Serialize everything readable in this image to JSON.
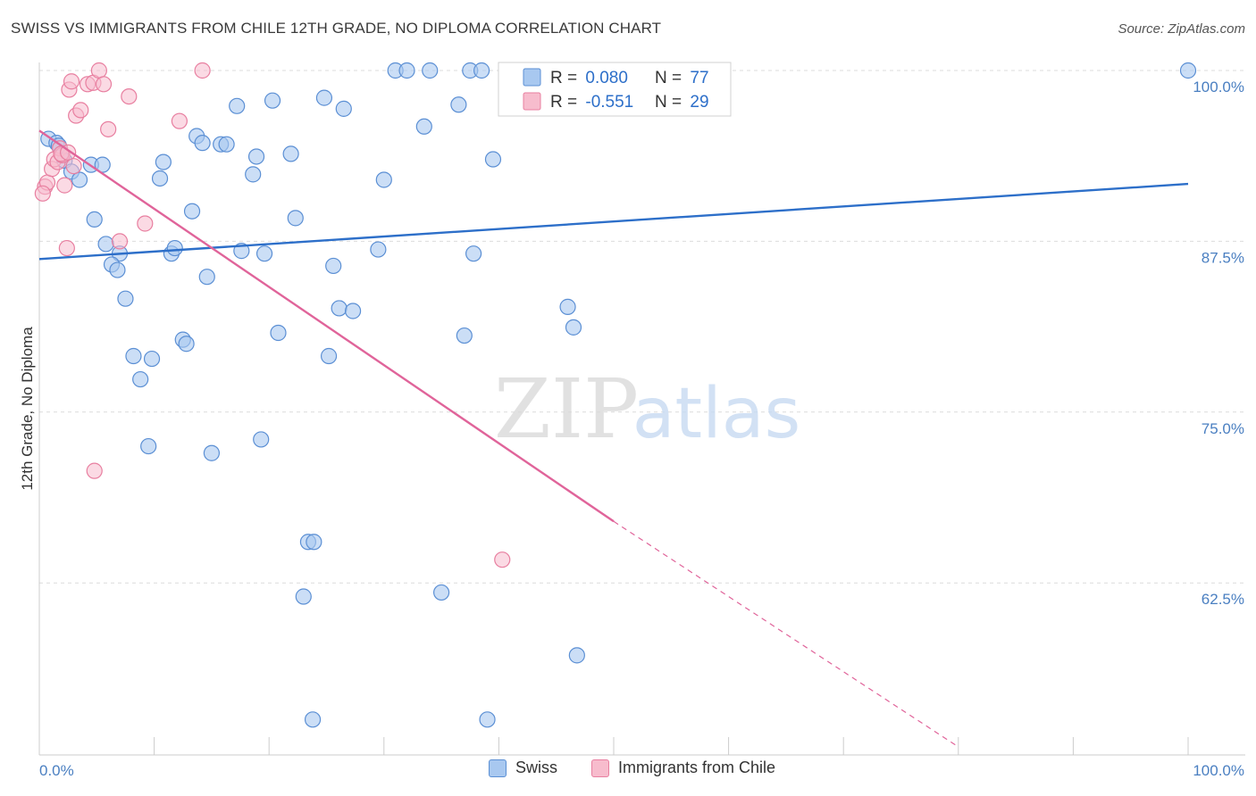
{
  "header": {
    "title": "SWISS VS IMMIGRANTS FROM CHILE 12TH GRADE, NO DIPLOMA CORRELATION CHART",
    "source": "Source: ZipAtlas.com"
  },
  "watermark": {
    "zip": "ZIP",
    "atlas": "atlas"
  },
  "legend": {
    "swiss": {
      "r_label": "R = ",
      "r_value": "0.080",
      "n_label": "N = ",
      "n_value": "77"
    },
    "chile": {
      "r_label": "R = ",
      "r_value": "-0.551",
      "n_label": "N = ",
      "n_value": "29"
    }
  },
  "bottom_legend": {
    "swiss": "Swiss",
    "chile": "Immigrants from Chile"
  },
  "colors": {
    "swiss_fill": "#a8c8f0",
    "swiss_stroke": "#5b8fd4",
    "swiss_line": "#2d6fc9",
    "chile_fill": "#f7bccd",
    "chile_stroke": "#e87fa0",
    "chile_line": "#e0649a",
    "axis_label": "#4a7fc1",
    "grid": "#dcdcdc"
  },
  "chart_data": {
    "type": "scatter",
    "title": "SWISS VS IMMIGRANTS FROM CHILE 12TH GRADE, NO DIPLOMA CORRELATION CHART",
    "xlabel": "",
    "ylabel": "12th Grade, No Diploma",
    "xlim": [
      0,
      100
    ],
    "ylim": [
      50.5,
      101
    ],
    "x_tick_labels": [
      "0.0%",
      "100.0%"
    ],
    "y_ticks": [
      62.5,
      75.0,
      87.5,
      100.0
    ],
    "y_tick_labels": [
      "62.5%",
      "75.0%",
      "87.5%",
      "100.0%"
    ],
    "grid": true,
    "legend_position": "top-center",
    "series": [
      {
        "name": "Swiss",
        "r": 0.08,
        "n": 77,
        "trend": {
          "x": [
            0,
            100
          ],
          "y": [
            86.2,
            91.7
          ]
        },
        "points": [
          [
            0.8,
            95.0
          ],
          [
            1.5,
            94.7
          ],
          [
            1.7,
            94.5
          ],
          [
            2.2,
            93.4
          ],
          [
            2.8,
            92.6
          ],
          [
            3.5,
            92.0
          ],
          [
            4.5,
            93.1
          ],
          [
            5.5,
            93.1
          ],
          [
            4.8,
            89.1
          ],
          [
            5.8,
            87.3
          ],
          [
            7.0,
            86.6
          ],
          [
            6.3,
            85.8
          ],
          [
            6.8,
            85.4
          ],
          [
            7.5,
            83.3
          ],
          [
            8.2,
            79.1
          ],
          [
            9.8,
            78.9
          ],
          [
            8.8,
            77.4
          ],
          [
            9.5,
            72.5
          ],
          [
            10.5,
            92.1
          ],
          [
            10.8,
            93.3
          ],
          [
            11.5,
            86.6
          ],
          [
            11.8,
            87.0
          ],
          [
            12.5,
            80.3
          ],
          [
            12.8,
            80.0
          ],
          [
            13.3,
            89.7
          ],
          [
            13.7,
            95.2
          ],
          [
            14.2,
            94.7
          ],
          [
            14.6,
            84.9
          ],
          [
            15.0,
            72.0
          ],
          [
            15.8,
            94.6
          ],
          [
            16.3,
            94.6
          ],
          [
            17.2,
            97.4
          ],
          [
            17.6,
            86.8
          ],
          [
            18.6,
            92.4
          ],
          [
            18.9,
            93.7
          ],
          [
            19.3,
            73.0
          ],
          [
            19.6,
            86.6
          ],
          [
            20.3,
            97.8
          ],
          [
            20.8,
            80.8
          ],
          [
            21.9,
            93.9
          ],
          [
            22.3,
            89.2
          ],
          [
            23.0,
            61.5
          ],
          [
            23.4,
            65.5
          ],
          [
            23.9,
            65.5
          ],
          [
            24.8,
            98.0
          ],
          [
            25.2,
            79.1
          ],
          [
            25.6,
            85.7
          ],
          [
            26.1,
            82.6
          ],
          [
            26.5,
            97.2
          ],
          [
            27.3,
            82.4
          ],
          [
            23.8,
            52.5
          ],
          [
            29.5,
            86.9
          ],
          [
            30.0,
            92.0
          ],
          [
            31.0,
            100.0
          ],
          [
            32.0,
            100.0
          ],
          [
            33.5,
            95.9
          ],
          [
            34.0,
            100.0
          ],
          [
            35.0,
            61.8
          ],
          [
            36.5,
            97.5
          ],
          [
            37.5,
            100.0
          ],
          [
            38.5,
            100.0
          ],
          [
            37.0,
            80.6
          ],
          [
            37.8,
            86.6
          ],
          [
            39.0,
            52.5
          ],
          [
            39.5,
            93.5
          ],
          [
            41.5,
            100.0
          ],
          [
            43.0,
            100.0
          ],
          [
            45.0,
            100.0
          ],
          [
            46.5,
            100.0
          ],
          [
            46.0,
            82.7
          ],
          [
            46.5,
            81.2
          ],
          [
            46.8,
            57.2
          ],
          [
            49.0,
            100.0
          ],
          [
            51.0,
            100.0
          ],
          [
            53.0,
            100.0
          ],
          [
            55.0,
            100.0
          ],
          [
            100.0,
            100.0
          ]
        ]
      },
      {
        "name": "Immigrants from Chile",
        "r": -0.551,
        "n": 29,
        "trend": {
          "x": [
            0,
            50
          ],
          "y": [
            95.6,
            67.0
          ]
        },
        "trend_dashed": {
          "x": [
            50,
            80
          ],
          "y": [
            67.0,
            50.5
          ]
        },
        "points": [
          [
            0.5,
            91.5
          ],
          [
            0.7,
            91.8
          ],
          [
            1.1,
            92.8
          ],
          [
            1.3,
            93.5
          ],
          [
            1.6,
            93.3
          ],
          [
            1.8,
            94.3
          ],
          [
            2.0,
            93.8
          ],
          [
            2.2,
            91.6
          ],
          [
            2.4,
            87.0
          ],
          [
            2.6,
            98.6
          ],
          [
            2.8,
            99.2
          ],
          [
            3.2,
            96.7
          ],
          [
            3.6,
            97.1
          ],
          [
            4.2,
            99.0
          ],
          [
            4.7,
            99.1
          ],
          [
            5.2,
            100.0
          ],
          [
            5.6,
            99.0
          ],
          [
            6.0,
            95.7
          ],
          [
            7.0,
            87.5
          ],
          [
            7.8,
            98.1
          ],
          [
            9.2,
            88.8
          ],
          [
            12.2,
            96.3
          ],
          [
            14.2,
            100.0
          ],
          [
            4.8,
            70.7
          ],
          [
            40.3,
            64.2
          ],
          [
            0.3,
            91.0
          ],
          [
            1.9,
            93.9
          ],
          [
            2.5,
            94.0
          ],
          [
            3.0,
            93.0
          ]
        ]
      }
    ]
  }
}
